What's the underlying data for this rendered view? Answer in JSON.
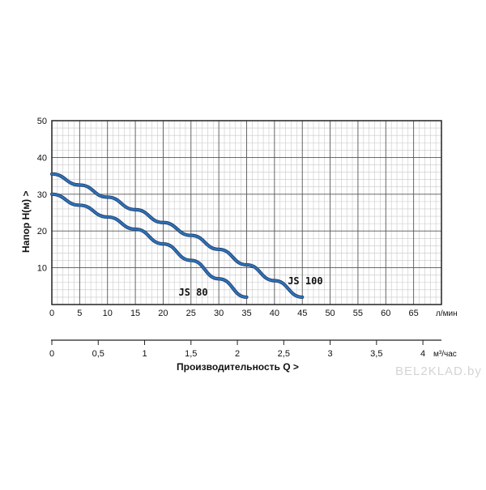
{
  "chart_data": {
    "type": "line",
    "ylabel": "Напор   H(м)  >",
    "xlabel": "Производительность Q  >",
    "x_unit": "л/мин",
    "x2_unit": "м³/час",
    "xlim": [
      0,
      70
    ],
    "ylim": [
      0,
      50
    ],
    "y_ticks": [
      "10",
      "20",
      "30",
      "40",
      "50"
    ],
    "x_ticks": [
      "0",
      "5",
      "10",
      "15",
      "20",
      "25",
      "30",
      "35",
      "40",
      "45",
      "50",
      "55",
      "60",
      "65"
    ],
    "x2_ticks": [
      "0",
      "0,5",
      "1",
      "1,5",
      "2",
      "2,5",
      "3",
      "3,5",
      "4"
    ],
    "grid": true,
    "series": [
      {
        "name": "JS 80",
        "color": "#2f6fb6",
        "x": [
          0,
          5,
          10,
          15,
          20,
          25,
          30,
          35
        ],
        "y": [
          30,
          27,
          23.8,
          20.5,
          16.5,
          12,
          7,
          2
        ]
      },
      {
        "name": "JS 100",
        "color": "#2f6fb6",
        "x": [
          0,
          5,
          10,
          15,
          20,
          25,
          30,
          35,
          40,
          45
        ],
        "y": [
          35.5,
          32.5,
          29.2,
          25.8,
          22.3,
          18.8,
          15,
          10.8,
          6.5,
          2
        ]
      }
    ]
  },
  "watermark": "BEL2KLAD.by"
}
